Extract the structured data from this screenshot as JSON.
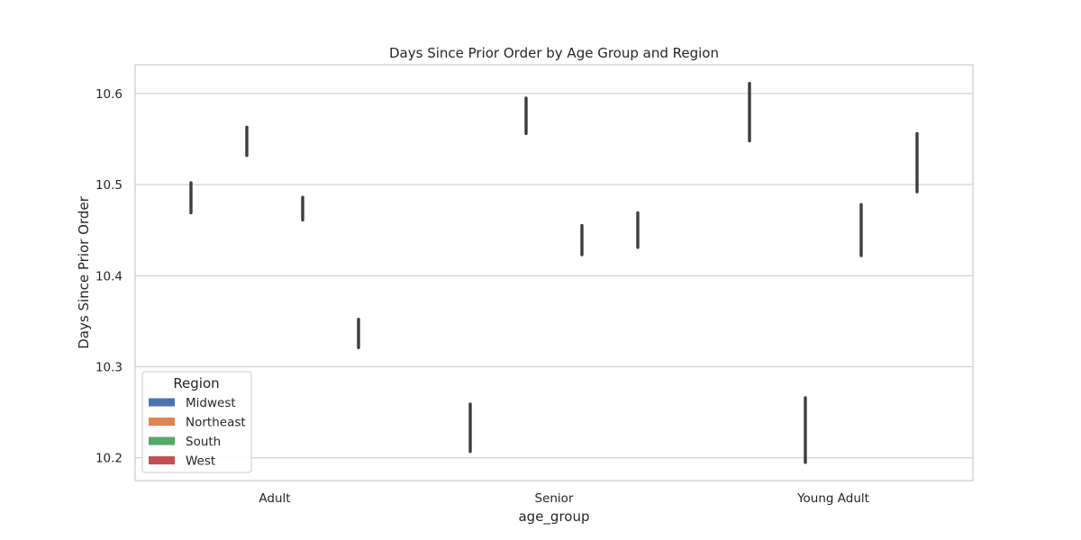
{
  "chart_data": {
    "type": "bar",
    "title": "Days Since Prior Order by Age Group and Region",
    "xlabel": "age_group",
    "ylabel": "Days Since Prior Order",
    "categories": [
      "Adult",
      "Senior",
      "Young Adult"
    ],
    "ylim": [
      10.175,
      10.6315
    ],
    "yticks": [
      10.2,
      10.3,
      10.4,
      10.5,
      10.6
    ],
    "ytick_labels": [
      "10.2",
      "10.3",
      "10.4",
      "10.5",
      "10.6"
    ],
    "grid": true,
    "legend": {
      "title": "Region",
      "placement": "lower-left"
    },
    "series": [
      {
        "name": "Midwest",
        "color": "#4c72b0",
        "errorbars": [
          [
            10.469,
            10.502
          ],
          [
            10.207,
            10.259
          ],
          [
            10.548,
            10.611
          ]
        ]
      },
      {
        "name": "Northeast",
        "color": "#dd8452",
        "errorbars": [
          [
            10.532,
            10.563
          ],
          [
            10.556,
            10.595
          ],
          [
            10.195,
            10.266
          ]
        ]
      },
      {
        "name": "South",
        "color": "#55a868",
        "errorbars": [
          [
            10.461,
            10.486
          ],
          [
            10.423,
            10.455
          ],
          [
            10.422,
            10.478
          ]
        ]
      },
      {
        "name": "West",
        "color": "#c44e52",
        "errorbars": [
          [
            10.321,
            10.352
          ],
          [
            10.431,
            10.469
          ],
          [
            10.492,
            10.556
          ]
        ]
      }
    ]
  }
}
